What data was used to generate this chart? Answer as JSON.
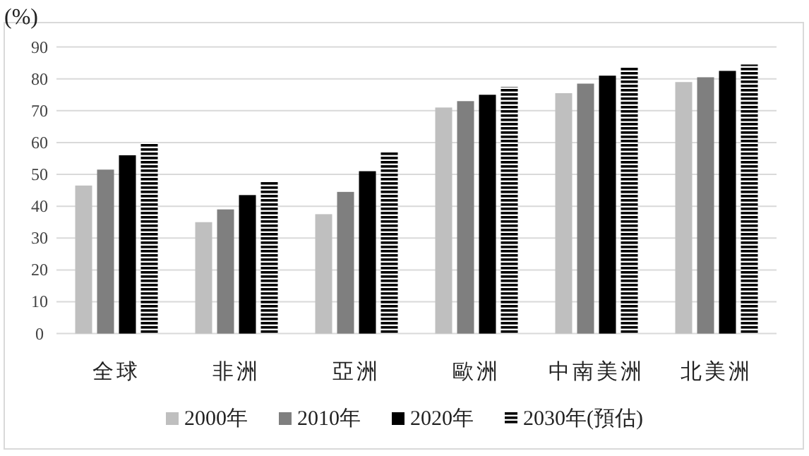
{
  "chart_data": {
    "type": "bar",
    "ylabel": "(%)",
    "categories": [
      "全球",
      "非洲",
      "亞洲",
      "歐洲",
      "中南美洲",
      "北美洲"
    ],
    "series": [
      {
        "name": "2000年",
        "color": "#bfbfbf",
        "values": [
          46.5,
          35,
          37.5,
          71,
          75.5,
          79
        ]
      },
      {
        "name": "2010年",
        "color": "#7f7f7f",
        "values": [
          51.5,
          39,
          44.5,
          73,
          78.5,
          80.5
        ]
      },
      {
        "name": "2020年",
        "color": "#000000",
        "values": [
          56,
          43.5,
          51,
          75,
          81,
          82.5
        ]
      },
      {
        "name": "2030年(預估)",
        "color": "#000000",
        "values": [
          60,
          48,
          57,
          77.5,
          83.5,
          84.5
        ]
      }
    ],
    "ylim": [
      0,
      90
    ],
    "yticks": [
      0,
      10,
      20,
      30,
      40,
      50,
      60,
      70,
      80,
      90
    ],
    "grid": "y",
    "legend": "bottom"
  }
}
